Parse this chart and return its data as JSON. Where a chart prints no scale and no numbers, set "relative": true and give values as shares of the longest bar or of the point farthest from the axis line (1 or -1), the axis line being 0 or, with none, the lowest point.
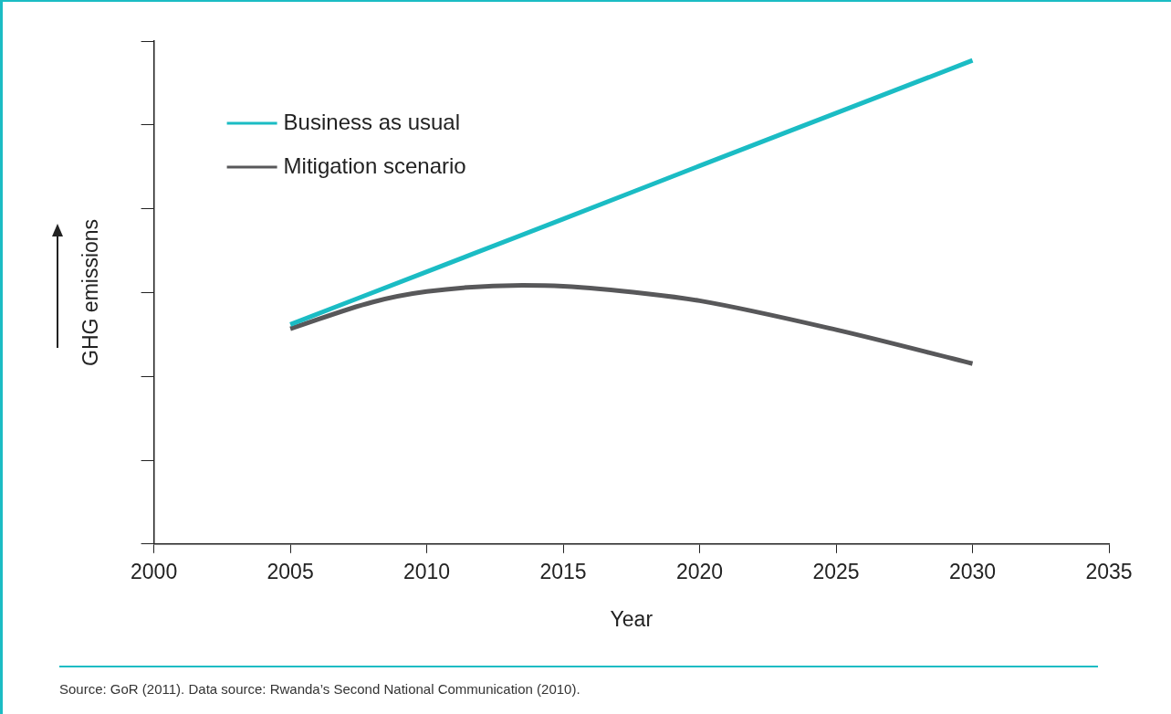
{
  "chart_data": {
    "type": "line",
    "relative": true,
    "xlabel": "Year",
    "ylabel": "GHG emissions",
    "xlim": [
      2000,
      2035
    ],
    "xticks": [
      2000,
      2005,
      2010,
      2015,
      2020,
      2025,
      2030,
      2035
    ],
    "legend": "top left",
    "grid": false,
    "marker": "none",
    "line_style": "solid",
    "series": [
      {
        "name": "Business as usual",
        "color": "#1bbcc4",
        "x": [
          2005,
          2010,
          2015,
          2020,
          2025,
          2030
        ],
        "values": [
          0.454,
          0.563,
          0.672,
          0.782,
          0.891,
          1
        ]
      },
      {
        "name": "Mitigation scenario",
        "color": "#58585a",
        "x": [
          2005,
          2008,
          2010,
          2013.5,
          2015,
          2018,
          2020,
          2025,
          2030
        ],
        "values": [
          0.445,
          0.5,
          0.522,
          0.535,
          0.533,
          0.518,
          0.503,
          0.443,
          0.373
        ]
      }
    ],
    "annotations": [
      "Source: GoR (2011). Data source: Rwanda’s Second National Communication (2010)."
    ]
  }
}
